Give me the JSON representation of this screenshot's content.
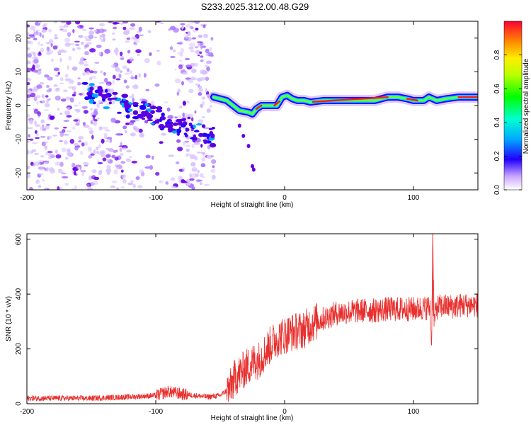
{
  "title": "S233.2025.312.00.48.G29",
  "chart_data": [
    {
      "type": "heatmap",
      "xlabel": "Height of straight line (km)",
      "ylabel": "Frequency (Hz)",
      "xlim": [
        -200,
        150
      ],
      "ylim": [
        -25,
        25
      ],
      "xticks": [
        -200,
        -100,
        0,
        100
      ],
      "xtick_labels": [
        "-200",
        "-100",
        "0",
        "100"
      ],
      "yticks": [
        -20,
        -10,
        0,
        10,
        20
      ],
      "ytick_labels": [
        "-20",
        "-10",
        "0",
        "10",
        "20"
      ],
      "colorbar": {
        "label": "Normalized spectral amplitude",
        "range": [
          0,
          1
        ],
        "ticks": [
          0.0,
          0.2,
          0.4,
          0.6,
          0.8
        ],
        "tick_labels": [
          "0.0",
          "0.2",
          "0.4",
          "0.6",
          "0.8"
        ]
      },
      "ridge": {
        "x": [
          -55,
          -45,
          -35,
          -28,
          -25,
          -22,
          -18,
          -12,
          -6,
          -2,
          2,
          6,
          10,
          15,
          20,
          30,
          40,
          50,
          60,
          70,
          80,
          88,
          95,
          100,
          108,
          112,
          118,
          125,
          135,
          150
        ],
        "y": [
          2.5,
          1.5,
          -1.5,
          -2.0,
          -2.5,
          -1.0,
          0.0,
          0.0,
          0.0,
          2.5,
          3.0,
          2.0,
          1.5,
          1.5,
          1.0,
          1.5,
          1.5,
          1.5,
          1.5,
          1.5,
          2.5,
          2.5,
          2.0,
          1.5,
          1.5,
          2.5,
          1.5,
          2.0,
          2.5,
          2.5
        ]
      }
    },
    {
      "type": "line",
      "xlabel": "Height of straight line (km)",
      "ylabel": "SNR (10 * v/v)",
      "xlim": [
        -200,
        150
      ],
      "ylim": [
        0,
        620
      ],
      "xticks": [
        -200,
        -100,
        0,
        100
      ],
      "xtick_labels": [
        "-200",
        "-100",
        "0",
        "100"
      ],
      "yticks": [
        0,
        200,
        400,
        600
      ],
      "ytick_labels": [
        "0",
        "200",
        "400",
        "600"
      ],
      "series": [
        {
          "name": "SNR",
          "color": "#e8302e",
          "x": [
            -200,
            -150,
            -120,
            -100,
            -90,
            -80,
            -70,
            -60,
            -50,
            -42,
            -38,
            -35,
            -30,
            -25,
            -20,
            -15,
            -10,
            -5,
            0,
            5,
            10,
            15,
            20,
            25,
            30,
            40,
            50,
            60,
            70,
            80,
            90,
            100,
            110,
            113,
            114,
            115,
            116,
            118,
            120,
            130,
            140,
            150
          ],
          "y": [
            20,
            20,
            25,
            30,
            45,
            35,
            30,
            25,
            30,
            60,
            100,
            110,
            130,
            150,
            160,
            190,
            220,
            240,
            250,
            260,
            265,
            270,
            290,
            300,
            310,
            330,
            335,
            340,
            340,
            345,
            345,
            345,
            350,
            350,
            200,
            600,
            300,
            350,
            355,
            355,
            360,
            360
          ]
        }
      ]
    }
  ]
}
